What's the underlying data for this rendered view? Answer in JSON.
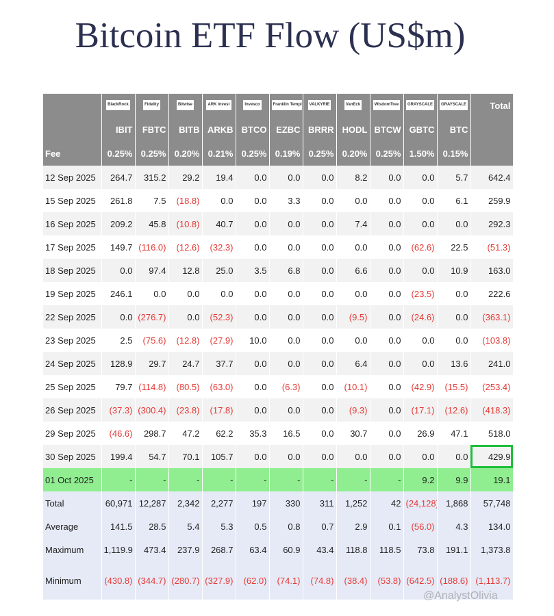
{
  "header": {
    "title": "Bitcoin ETF Flow (US$m)"
  },
  "table": {
    "logos": [
      "BlackRock",
      "Fidelity",
      "Bitwise",
      "ARK Invest",
      "Invesco",
      "Franklin Templeton",
      "VALKYRIE",
      "VanEck",
      "WisdomTree",
      "GRAYSCALE",
      "GRAYSCALE",
      "Total"
    ],
    "tickers": [
      "IBIT",
      "FBTC",
      "BITB",
      "ARKB",
      "BTCO",
      "EZBC",
      "BRRR",
      "HODL",
      "BTCW",
      "GBTC",
      "BTC"
    ],
    "rows": [
      [
        "Fee",
        "0.25%",
        "0.25%",
        "0.20%",
        "0.21%",
        "0.25%",
        "0.19%",
        "0.25%",
        "0.20%",
        "0.25%",
        "1.50%",
        "0.15%",
        ""
      ],
      [
        "12 Sep 2025",
        "264.7",
        "315.2",
        "29.2",
        "19.4",
        "0.0",
        "0.0",
        "0.0",
        "8.2",
        "0.0",
        "0.0",
        "5.7",
        "642.4"
      ],
      [
        "15 Sep 2025",
        "261.8",
        "7.5",
        "(18.8)",
        "0.0",
        "0.0",
        "3.3",
        "0.0",
        "0.0",
        "0.0",
        "0.0",
        "6.1",
        "259.9"
      ],
      [
        "16 Sep 2025",
        "209.2",
        "45.8",
        "(10.8)",
        "40.7",
        "0.0",
        "0.0",
        "0.0",
        "7.4",
        "0.0",
        "0.0",
        "0.0",
        "292.3"
      ],
      [
        "17 Sep 2025",
        "149.7",
        "(116.0)",
        "(12.6)",
        "(32.3)",
        "0.0",
        "0.0",
        "0.0",
        "0.0",
        "0.0",
        "(62.6)",
        "22.5",
        "(51.3)"
      ],
      [
        "18 Sep 2025",
        "0.0",
        "97.4",
        "12.8",
        "25.0",
        "3.5",
        "6.8",
        "0.0",
        "6.6",
        "0.0",
        "0.0",
        "10.9",
        "163.0"
      ],
      [
        "19 Sep 2025",
        "246.1",
        "0.0",
        "0.0",
        "0.0",
        "0.0",
        "0.0",
        "0.0",
        "0.0",
        "0.0",
        "(23.5)",
        "0.0",
        "222.6"
      ],
      [
        "22 Sep 2025",
        "0.0",
        "(276.7)",
        "0.0",
        "(52.3)",
        "0.0",
        "0.0",
        "0.0",
        "(9.5)",
        "0.0",
        "(24.6)",
        "0.0",
        "(363.1)"
      ],
      [
        "23 Sep 2025",
        "2.5",
        "(75.6)",
        "(12.8)",
        "(27.9)",
        "10.0",
        "0.0",
        "0.0",
        "0.0",
        "0.0",
        "0.0",
        "0.0",
        "(103.8)"
      ],
      [
        "24 Sep 2025",
        "128.9",
        "29.7",
        "24.7",
        "37.7",
        "0.0",
        "0.0",
        "0.0",
        "6.4",
        "0.0",
        "0.0",
        "13.6",
        "241.0"
      ],
      [
        "25 Sep 2025",
        "79.7",
        "(114.8)",
        "(80.5)",
        "(63.0)",
        "0.0",
        "(6.3)",
        "0.0",
        "(10.1)",
        "0.0",
        "(42.9)",
        "(15.5)",
        "(253.4)"
      ],
      [
        "26 Sep 2025",
        "(37.3)",
        "(300.4)",
        "(23.8)",
        "(17.8)",
        "0.0",
        "0.0",
        "0.0",
        "(9.3)",
        "0.0",
        "(17.1)",
        "(12.6)",
        "(418.3)"
      ],
      [
        "29 Sep 2025",
        "(46.6)",
        "298.7",
        "47.2",
        "62.2",
        "35.3",
        "16.5",
        "0.0",
        "30.7",
        "0.0",
        "26.9",
        "47.1",
        "518.0"
      ],
      [
        "30 Sep 2025",
        "199.4",
        "54.7",
        "70.1",
        "105.7",
        "0.0",
        "0.0",
        "0.0",
        "0.0",
        "0.0",
        "0.0",
        "0.0",
        "429.9"
      ],
      [
        "01 Oct 2025",
        "-",
        "-",
        "-",
        "-",
        "-",
        "-",
        "-",
        "-",
        "-",
        "9.2",
        "9.9",
        "19.1"
      ],
      [
        "Total",
        "60,971",
        "12,287",
        "2,342",
        "2,277",
        "197",
        "330",
        "311",
        "1,252",
        "42",
        "(24,128)",
        "1,868",
        "57,748"
      ],
      [
        "Average",
        "141.5",
        "28.5",
        "5.4",
        "5.3",
        "0.5",
        "0.8",
        "0.7",
        "2.9",
        "0.1",
        "(56.0)",
        "4.3",
        "134.0"
      ],
      [
        "Maximum",
        "1,119.9",
        "473.4",
        "237.9",
        "268.7",
        "63.4",
        "60.9",
        "43.4",
        "118.8",
        "118.5",
        "73.8",
        "191.1",
        "1,373.8"
      ],
      [
        "Minimum",
        "(430.8)",
        "(344.7)",
        "(280.7)",
        "(327.9)",
        "(62.0)",
        "(74.1)",
        "(74.8)",
        "(38.4)",
        "(53.8)",
        "(642.5)",
        "(188.6)",
        "(1,113.7)"
      ]
    ]
  },
  "watermark": "@AnalystOlivia"
}
